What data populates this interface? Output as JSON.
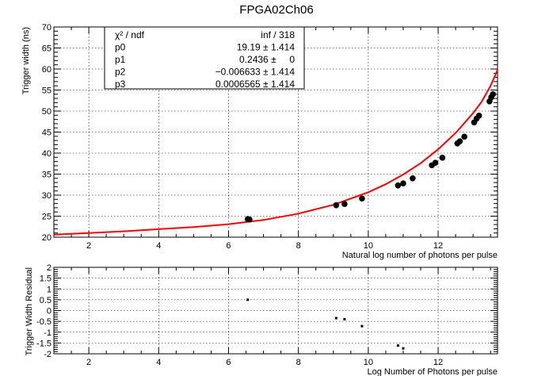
{
  "title": "FPGA02Ch06",
  "chart_data": [
    {
      "type": "scatter",
      "name": "fit",
      "xlabel": "Natural log number of photons per pulse",
      "ylabel": "Trigger width (ns)",
      "xlim": [
        1.0,
        13.7
      ],
      "ylim": [
        20,
        70
      ],
      "x_ticks": [
        2,
        4,
        6,
        8,
        10,
        12
      ],
      "y_ticks": [
        20,
        25,
        30,
        35,
        40,
        45,
        50,
        55,
        60,
        65,
        70
      ],
      "grid": true,
      "points": {
        "x": [
          6.55,
          6.6,
          9.08,
          9.32,
          9.82,
          10.85,
          11.0,
          11.27,
          11.82,
          11.92,
          12.12,
          12.55,
          12.62,
          12.75,
          13.03,
          13.1,
          13.17,
          13.47,
          13.52,
          13.57
        ],
        "y": [
          24.3,
          24.2,
          27.6,
          27.9,
          29.2,
          32.3,
          32.8,
          34.0,
          37.1,
          37.7,
          38.9,
          42.3,
          42.8,
          43.9,
          47.3,
          48.2,
          48.9,
          52.3,
          53.3,
          54.0
        ]
      },
      "fit_curve": {
        "x": [
          1.0,
          2.0,
          3.0,
          4.0,
          5.0,
          6.0,
          7.0,
          8.0,
          9.0,
          10.0,
          10.5,
          11.0,
          11.5,
          12.0,
          12.5,
          13.0,
          13.25,
          13.5,
          13.7
        ],
        "y": [
          20.6,
          21.0,
          21.4,
          21.9,
          22.4,
          23.1,
          24.1,
          25.6,
          27.7,
          30.7,
          32.6,
          34.9,
          37.6,
          40.9,
          44.8,
          49.5,
          52.3,
          56.0,
          59.8
        ]
      },
      "stats_box": {
        "rows": [
          {
            "label": "χ² / ndf",
            "value": "inf / 318"
          },
          {
            "label": "p0",
            "value": "19.19 ± 1.414"
          },
          {
            "label": "p1",
            "value": "0.2436 ±     0"
          },
          {
            "label": "p2",
            "value": "−0.006633 ± 1.414"
          },
          {
            "label": "p3",
            "value": "0.0006565 ± 1.414"
          }
        ]
      },
      "colors": {
        "fit": "#ff0000",
        "points": "#000000"
      }
    },
    {
      "type": "scatter",
      "name": "residual",
      "xlabel": "Log Number of Photons per pulse",
      "ylabel": "Trigger Width Residual",
      "xlim": [
        1.0,
        13.7
      ],
      "ylim": [
        -2,
        2
      ],
      "x_ticks": [
        2,
        4,
        6,
        8,
        10,
        12
      ],
      "y_ticks": [
        -2,
        -1.5,
        -1,
        -0.5,
        0,
        0.5,
        1,
        1.5,
        2
      ],
      "grid": true,
      "points": {
        "x": [
          6.55,
          9.08,
          9.32,
          9.82,
          10.85,
          11.0
        ],
        "y": [
          0.5,
          -0.35,
          -0.4,
          -0.72,
          -1.62,
          -1.75
        ]
      }
    }
  ]
}
